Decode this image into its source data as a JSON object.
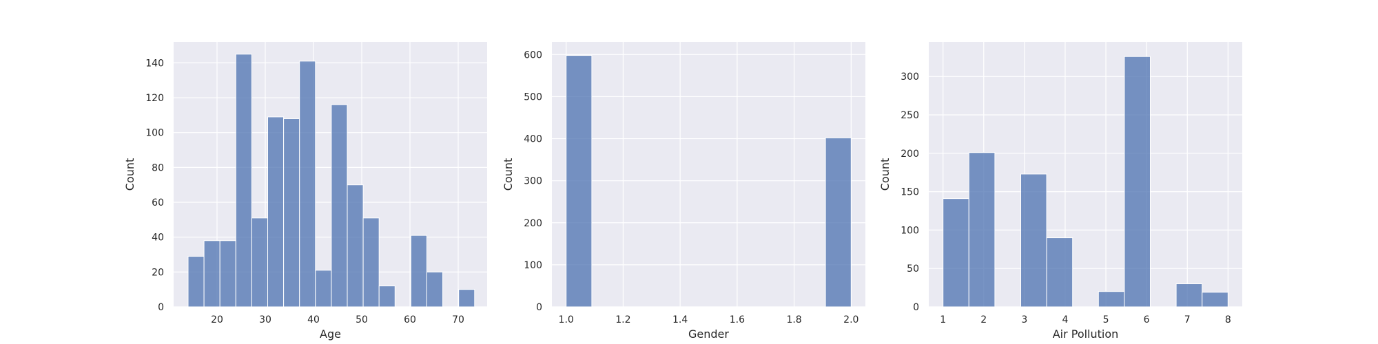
{
  "figure": {
    "background": "#ffffff",
    "plot_background": "#eaeaf2",
    "grid_color": "#ffffff",
    "bar_color": "#4c72b0",
    "bar_edge_color": "#ffffff"
  },
  "chart_data": [
    {
      "type": "histogram",
      "title": "",
      "xlabel": "Age",
      "ylabel": "Count",
      "xlim": [
        11.0,
        76.0
      ],
      "ylim": [
        0,
        152
      ],
      "xticks": [
        20,
        30,
        40,
        50,
        60,
        70
      ],
      "yticks": [
        0,
        20,
        40,
        60,
        80,
        100,
        120,
        140
      ],
      "grid": true,
      "bins": [
        {
          "x0": 14.0,
          "x1": 17.3,
          "count": 29
        },
        {
          "x0": 17.3,
          "x1": 20.6,
          "count": 38
        },
        {
          "x0": 20.6,
          "x1": 23.9,
          "count": 38
        },
        {
          "x0": 23.9,
          "x1": 27.2,
          "count": 145
        },
        {
          "x0": 27.2,
          "x1": 30.5,
          "count": 51
        },
        {
          "x0": 30.5,
          "x1": 33.8,
          "count": 109
        },
        {
          "x0": 33.8,
          "x1": 37.1,
          "count": 108
        },
        {
          "x0": 37.1,
          "x1": 40.4,
          "count": 141
        },
        {
          "x0": 40.4,
          "x1": 43.7,
          "count": 21
        },
        {
          "x0": 43.7,
          "x1": 47.0,
          "count": 116
        },
        {
          "x0": 47.0,
          "x1": 50.3,
          "count": 70
        },
        {
          "x0": 50.3,
          "x1": 53.6,
          "count": 51
        },
        {
          "x0": 53.6,
          "x1": 56.9,
          "count": 12
        },
        {
          "x0": 60.2,
          "x1": 63.5,
          "count": 41
        },
        {
          "x0": 63.5,
          "x1": 66.8,
          "count": 20
        },
        {
          "x0": 70.1,
          "x1": 73.4,
          "count": 10
        }
      ]
    },
    {
      "type": "histogram",
      "title": "",
      "xlabel": "Gender",
      "ylabel": "Count",
      "xlim": [
        0.95,
        2.05
      ],
      "ylim": [
        0,
        630
      ],
      "xticks": [
        "1.0",
        "1.2",
        "1.4",
        "1.6",
        "1.8",
        "2.0"
      ],
      "yticks": [
        0,
        100,
        200,
        300,
        400,
        500,
        600
      ],
      "grid": true,
      "bins": [
        {
          "x0": 1.0,
          "x1": 1.09,
          "count": 598
        },
        {
          "x0": 1.91,
          "x1": 2.0,
          "count": 402
        }
      ]
    },
    {
      "type": "histogram",
      "title": "",
      "xlabel": "Air Pollution",
      "ylabel": "Count",
      "xlim": [
        0.65,
        8.35
      ],
      "ylim": [
        0,
        345
      ],
      "xticks": [
        1,
        2,
        3,
        4,
        5,
        6,
        7,
        8
      ],
      "yticks": [
        0,
        50,
        100,
        150,
        200,
        250,
        300
      ],
      "grid": true,
      "bins": [
        {
          "x0": 1.0,
          "x1": 1.636,
          "count": 141
        },
        {
          "x0": 1.636,
          "x1": 2.273,
          "count": 201
        },
        {
          "x0": 2.909,
          "x1": 3.545,
          "count": 173
        },
        {
          "x0": 3.545,
          "x1": 4.182,
          "count": 90
        },
        {
          "x0": 4.818,
          "x1": 5.455,
          "count": 20
        },
        {
          "x0": 5.455,
          "x1": 6.091,
          "count": 326
        },
        {
          "x0": 6.727,
          "x1": 7.364,
          "count": 30
        },
        {
          "x0": 7.364,
          "x1": 8.0,
          "count": 19
        }
      ]
    }
  ]
}
